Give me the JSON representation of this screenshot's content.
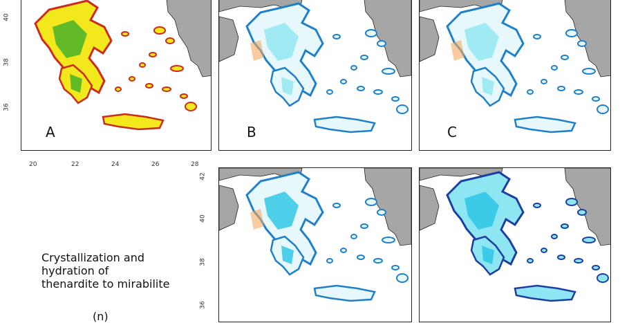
{
  "panels": [
    {
      "id": "A",
      "label": "A",
      "scheme": "green"
    },
    {
      "id": "B",
      "label": "B",
      "scheme": "cyan-light"
    },
    {
      "id": "C",
      "label": "C",
      "scheme": "cyan-light"
    },
    {
      "id": "D",
      "label": "",
      "scheme": "cyan-mid"
    },
    {
      "id": "E",
      "label": "",
      "scheme": "cyan-dark"
    }
  ],
  "axes": {
    "x_ticks": [
      "20",
      "22",
      "24",
      "26",
      "28"
    ],
    "y_ticks_top": [
      "40",
      "38",
      "36"
    ],
    "y_ticks_bottom": [
      "42",
      "40",
      "38",
      "36"
    ]
  },
  "caption": {
    "line1": "Crystallization and",
    "line2": "hydration of",
    "line3": "thenardite to mirabilite",
    "sub": "(n)"
  },
  "colors": {
    "land_neighbors": "#a6a6a6",
    "green_scheme": [
      "#cc2a1a",
      "#e8a020",
      "#f2e81c",
      "#9ee01e",
      "#3fae2a"
    ],
    "cyan_scheme": [
      "#f4a860",
      "#e6f8fb",
      "#8ee6f2",
      "#27c4e6",
      "#1f7fc9",
      "#1a3fa0"
    ]
  }
}
